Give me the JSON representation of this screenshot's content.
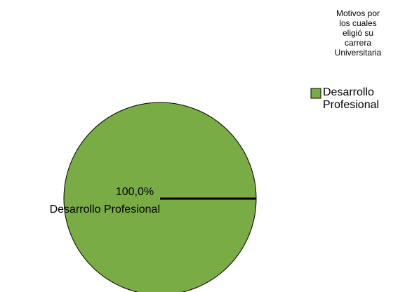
{
  "chart_data": {
    "type": "pie",
    "categories": [
      "Desarrollo Profesional"
    ],
    "values": [
      100.0
    ],
    "value_labels": [
      "100,0%"
    ],
    "legend": {
      "title_lines": [
        "Motivos por",
        "los cuales",
        "eligió su",
        "carrera",
        "Universitaria"
      ],
      "placement": "top-right",
      "entries": [
        {
          "lines": [
            "Desarrollo",
            "Profesional"
          ]
        }
      ]
    },
    "colors": {
      "slice": "#7aac45",
      "outline": "#000000"
    }
  }
}
